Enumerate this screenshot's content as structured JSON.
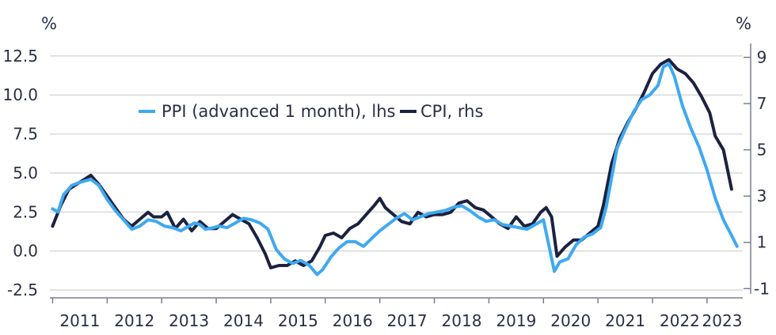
{
  "chart_data": {
    "type": "line",
    "left_unit": "%",
    "right_unit": "%",
    "ylim_left": [
      -3.0,
      13.3
    ],
    "ylim_right": [
      -1.4,
      9.6
    ],
    "left_ticks": [
      "12.5",
      "10.0",
      "7.5",
      "5.0",
      "2.5",
      "0.0",
      "-2.5"
    ],
    "right_ticks": [
      "9",
      "7",
      "5",
      "3",
      "1",
      "-1"
    ],
    "x_labels": [
      "2011",
      "2012",
      "2013",
      "2014",
      "2015",
      "2016",
      "2017",
      "2018",
      "2019",
      "2020",
      "2021",
      "2022",
      "2023"
    ],
    "xlim": [
      2010.95,
      2023.8
    ],
    "grid": true,
    "legend_position": "top-left",
    "colors": {
      "ppi": "#3fa9f0",
      "cpi": "#1b2240",
      "grid": "#d9d9d9",
      "axis": "#2a2f45"
    },
    "series": [
      {
        "name": "PPI (advanced 1 month), lhs",
        "axis": "left",
        "x": [
          2011.0,
          2011.1,
          2011.2,
          2011.35,
          2011.5,
          2011.7,
          2011.85,
          2012.0,
          2012.15,
          2012.3,
          2012.45,
          2012.6,
          2012.75,
          2012.9,
          2013.05,
          2013.2,
          2013.35,
          2013.5,
          2013.6,
          2013.7,
          2013.8,
          2013.95,
          2014.05,
          2014.2,
          2014.35,
          2014.5,
          2014.65,
          2014.8,
          2014.95,
          2015.1,
          2015.25,
          2015.4,
          2015.55,
          2015.7,
          2015.85,
          2015.95,
          2016.1,
          2016.25,
          2016.4,
          2016.55,
          2016.7,
          2016.85,
          2017.0,
          2017.15,
          2017.3,
          2017.45,
          2017.6,
          2017.75,
          2017.9,
          2018.05,
          2018.2,
          2018.35,
          2018.5,
          2018.65,
          2018.8,
          2018.95,
          2019.1,
          2019.25,
          2019.4,
          2019.55,
          2019.7,
          2019.85,
          2020.0,
          2020.2,
          2020.3,
          2020.45,
          2020.6,
          2020.75,
          2020.9,
          2021.05,
          2021.15,
          2021.25,
          2021.35,
          2021.5,
          2021.65,
          2021.8,
          2021.95,
          2022.1,
          2022.2,
          2022.3,
          2022.4,
          2022.55,
          2022.7,
          2022.85,
          2023.0,
          2023.15,
          2023.3,
          2023.45,
          2023.55
        ],
        "y": [
          2.7,
          2.5,
          3.6,
          4.2,
          4.4,
          4.6,
          4.2,
          3.3,
          2.6,
          2.0,
          1.4,
          1.6,
          2.0,
          1.9,
          1.6,
          1.5,
          1.3,
          1.6,
          1.8,
          1.7,
          1.4,
          1.5,
          1.6,
          1.5,
          1.8,
          2.1,
          2.0,
          1.8,
          1.4,
          0.1,
          -0.5,
          -0.8,
          -0.6,
          -0.9,
          -1.5,
          -1.2,
          -0.4,
          0.2,
          0.6,
          0.6,
          0.3,
          0.8,
          1.3,
          1.7,
          2.1,
          2.4,
          2.0,
          2.2,
          2.4,
          2.5,
          2.6,
          2.8,
          2.9,
          2.6,
          2.2,
          1.9,
          2.0,
          1.7,
          1.6,
          1.5,
          1.4,
          1.7,
          2.0,
          -1.3,
          -0.7,
          -0.5,
          0.4,
          0.9,
          1.1,
          1.5,
          2.8,
          4.7,
          6.6,
          7.8,
          8.9,
          9.7,
          10.0,
          10.6,
          11.8,
          12.0,
          11.2,
          9.3,
          7.9,
          6.7,
          5.2,
          3.4,
          2.0,
          1.0,
          0.3
        ]
      },
      {
        "name": "CPI, rhs",
        "axis": "right",
        "x": [
          2011.0,
          2011.15,
          2011.3,
          2011.5,
          2011.7,
          2011.85,
          2012.0,
          2012.15,
          2012.3,
          2012.45,
          2012.6,
          2012.75,
          2012.85,
          2013.0,
          2013.1,
          2013.25,
          2013.4,
          2013.55,
          2013.7,
          2013.85,
          2014.0,
          2014.15,
          2014.3,
          2014.45,
          2014.6,
          2014.75,
          2014.9,
          2015.0,
          2015.15,
          2015.3,
          2015.45,
          2015.6,
          2015.75,
          2015.9,
          2016.0,
          2016.15,
          2016.3,
          2016.45,
          2016.6,
          2016.75,
          2016.9,
          2017.0,
          2017.1,
          2017.25,
          2017.4,
          2017.55,
          2017.7,
          2017.85,
          2018.0,
          2018.15,
          2018.3,
          2018.45,
          2018.6,
          2018.75,
          2018.9,
          2019.05,
          2019.2,
          2019.35,
          2019.5,
          2019.65,
          2019.8,
          2019.95,
          2020.05,
          2020.15,
          2020.25,
          2020.4,
          2020.55,
          2020.7,
          2020.85,
          2021.0,
          2021.1,
          2021.25,
          2021.4,
          2021.55,
          2021.7,
          2021.85,
          2022.0,
          2022.15,
          2022.3,
          2022.45,
          2022.6,
          2022.75,
          2022.9,
          2023.05,
          2023.15,
          2023.3,
          2023.45
        ],
        "y": [
          1.7,
          2.6,
          3.3,
          3.6,
          3.9,
          3.5,
          3.0,
          2.5,
          2.0,
          1.7,
          2.0,
          2.3,
          2.1,
          2.1,
          2.3,
          1.6,
          2.0,
          1.5,
          1.9,
          1.6,
          1.6,
          1.9,
          2.2,
          2.0,
          1.8,
          1.2,
          0.5,
          -0.1,
          0.0,
          0.0,
          0.2,
          0.0,
          0.2,
          0.8,
          1.3,
          1.4,
          1.2,
          1.6,
          1.8,
          2.2,
          2.6,
          2.9,
          2.5,
          2.2,
          1.9,
          1.8,
          2.3,
          2.1,
          2.2,
          2.2,
          2.3,
          2.7,
          2.8,
          2.5,
          2.4,
          2.1,
          1.8,
          1.6,
          2.1,
          1.7,
          1.8,
          2.3,
          2.5,
          2.1,
          0.4,
          0.8,
          1.1,
          1.1,
          1.4,
          1.7,
          2.6,
          4.4,
          5.5,
          6.2,
          6.8,
          7.5,
          8.3,
          8.7,
          8.9,
          8.5,
          8.3,
          7.9,
          7.3,
          6.6,
          5.6,
          5.0,
          3.3
        ]
      }
    ]
  }
}
